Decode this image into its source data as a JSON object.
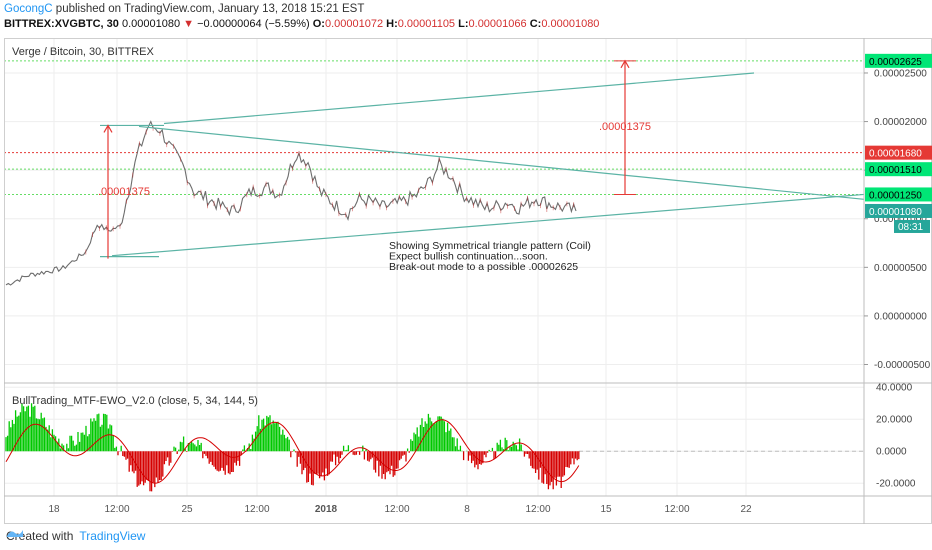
{
  "header": {
    "author": "GocongC",
    "published_text": "published on TradingView.com, January 13, 2018 15:21 EST",
    "symbol": "BITTREX:XVGBTC, 30",
    "last": "0.00001080",
    "change": "−0.00000064 (−5.59%)",
    "o_label": "O:",
    "o_value": "0.00001072",
    "h_label": "H:",
    "h_value": "0.00001105",
    "l_label": "L:",
    "l_value": "0.00001066",
    "c_label": "C:",
    "c_value": "0.00001080"
  },
  "chart_data": [
    {
      "type": "line",
      "title": "Verge / Bitcoin, 30, BITTREX",
      "y_axis_labels": [
        "0.00002500",
        "0.00002000",
        "0.00001500",
        "0.00001000",
        "0.00000500",
        "0.00000000",
        "-0.00000500"
      ],
      "y_ticks": [
        2.5e-05,
        2e-05,
        1.5e-05,
        1e-05,
        5e-06,
        0,
        -5e-06
      ],
      "ylim": [
        -6.8e-06,
        2.86e-05
      ],
      "x_tick_labels": [
        "18",
        "12:00",
        "25",
        "12:00",
        "2018",
        "12:00",
        "8",
        "12:00",
        "15",
        "12:00",
        "22"
      ],
      "price_tags": [
        {
          "label": "0.00002625",
          "value": 2.625e-05,
          "color": "#00e676",
          "text_color": "#000000"
        },
        {
          "label": "0.00001680",
          "value": 1.68e-05,
          "color": "#e53935",
          "text_color": "#ffffff"
        },
        {
          "label": "0.00001510",
          "value": 1.51e-05,
          "color": "#00e676",
          "text_color": "#000000"
        },
        {
          "label": "0.00001250",
          "value": 1.25e-05,
          "color": "#00e676",
          "text_color": "#000000"
        },
        {
          "label": "0.00001080",
          "value": 1.08e-05,
          "color": "#26a69a",
          "text_color": "#ffffff"
        }
      ],
      "time_tag": "08:31",
      "price_series_key_points": [
        [
          0,
          3.2e-06
        ],
        [
          0.04,
          4.2e-06
        ],
        [
          0.1,
          4.9e-06
        ],
        [
          0.14,
          6.6e-06
        ],
        [
          0.16,
          9.4e-06
        ],
        [
          0.18,
          8.8e-06
        ],
        [
          0.2,
          9.2e-06
        ],
        [
          0.23,
          1.65e-05
        ],
        [
          0.25,
          1.96e-05
        ],
        [
          0.27,
          1.92e-05
        ],
        [
          0.29,
          1.72e-05
        ],
        [
          0.31,
          1.55e-05
        ],
        [
          0.33,
          1.28e-05
        ],
        [
          0.35,
          1.22e-05
        ],
        [
          0.38,
          1.12e-05
        ],
        [
          0.4,
          1.08e-05
        ],
        [
          0.43,
          1.28e-05
        ],
        [
          0.46,
          1.32e-05
        ],
        [
          0.48,
          1.25e-05
        ],
        [
          0.51,
          1.68e-05
        ],
        [
          0.53,
          1.58e-05
        ],
        [
          0.55,
          1.28e-05
        ],
        [
          0.58,
          1.13e-05
        ],
        [
          0.6,
          1.06e-05
        ],
        [
          0.62,
          1.2e-05
        ],
        [
          0.64,
          1.18e-05
        ],
        [
          0.66,
          1.12e-05
        ],
        [
          0.69,
          1.16e-05
        ],
        [
          0.72,
          1.24e-05
        ],
        [
          0.74,
          1.36e-05
        ],
        [
          0.76,
          1.55e-05
        ],
        [
          0.78,
          1.45e-05
        ],
        [
          0.8,
          1.26e-05
        ],
        [
          0.82,
          1.18e-05
        ],
        [
          0.84,
          1.11e-05
        ],
        [
          0.86,
          1.13e-05
        ],
        [
          0.88,
          1.17e-05
        ],
        [
          0.9,
          1.11e-05
        ],
        [
          0.93,
          1.21e-05
        ],
        [
          0.96,
          1.14e-05
        ],
        [
          1.0,
          1.08e-05
        ]
      ],
      "annotations": [
        {
          "text": ".00001375",
          "kind": "measure-left"
        },
        {
          "text": ".00001375",
          "kind": "measure-right"
        },
        {
          "text": "Showing Symmetrical triangle pattern (Coil)",
          "kind": "note"
        },
        {
          "text": "Expect bullish continuation...soon.",
          "kind": "note"
        },
        {
          "text": "Break-out mode to a possible .00002625",
          "kind": "note"
        }
      ],
      "grid": true
    },
    {
      "type": "bar",
      "title": "BullTrading_MTF-EWO_V2.0 (close, 5, 34, 144, 5)",
      "y_axis_labels": [
        "40.0000",
        "20.0000",
        "0.0000",
        "-20.0000"
      ],
      "y_ticks": [
        40,
        20,
        0,
        -20
      ],
      "ylim": [
        -28,
        42
      ],
      "positive_color": "#00c800",
      "negative_color": "#d50000",
      "signal_color_a": "#00c800",
      "signal_color_b": "#d50000",
      "grid": true
    }
  ],
  "footer": {
    "created_with": "Created with",
    "brand": "TradingView"
  },
  "colors": {
    "trend_line": "#5bb3a5",
    "arrow": "#e53935",
    "green_level": "#66dd66",
    "red_level": "#e53935"
  }
}
